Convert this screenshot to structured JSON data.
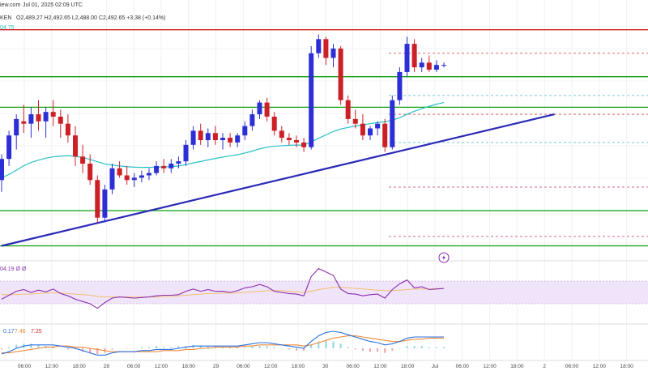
{
  "header": {
    "source_fragment": "iew.com",
    "datetime": "Jul 01, 2025 02:09 UTC",
    "ticker_fragment": "KEN",
    "ohlc_text": "O2,489.27 H2,492.65 L2,488.00 C2,492.65 +3.38 (+0.14%)",
    "ma_value": "04.75"
  },
  "rsi": {
    "values_text": "04.19 Ø Ø"
  },
  "macd": {
    "v1": "0.17",
    "v2": "7.46",
    "v3": "7.25"
  },
  "x_axis": {
    "ticks": [
      "06:00",
      "12:00",
      "18:00",
      "28",
      "06:00",
      "12:00",
      "18:00",
      "29",
      "06:00",
      "12:00",
      "18:00",
      "30",
      "06:00",
      "12:00",
      "18:00",
      "Jul",
      "06:00",
      "12:00",
      "18:00",
      "2",
      "06:00",
      "12:00",
      "18:00"
    ]
  },
  "colors": {
    "up": "#2d2fd6",
    "down": "#cc1f26",
    "ma": "#27c0c8",
    "trendline": "#2a2ab8",
    "support": "#0aa00a",
    "resistance": "#d8232a",
    "rsi_line": "#8b2fb0",
    "rsi_ma": "#f0c070",
    "rsi_band": "#f0e4fa",
    "macd_line": "#2a70e0",
    "signal_line": "#f28a3a",
    "hist_pos": "#8fd6dc",
    "hist_neg": "#f2a0a0"
  },
  "chart_data": {
    "type": "candlestick",
    "price_scale_note": "no price axis labels visible; ohlc in arbitrary units (0-100 scale)",
    "candles": [
      [
        38,
        49,
        33,
        47
      ],
      [
        47,
        59,
        44,
        57
      ],
      [
        57,
        66,
        51,
        64
      ],
      [
        63,
        70,
        58,
        62
      ],
      [
        62,
        69,
        56,
        66
      ],
      [
        66,
        72,
        59,
        63
      ],
      [
        63,
        69,
        56,
        67
      ],
      [
        67,
        72,
        61,
        65
      ],
      [
        65,
        68,
        56,
        62
      ],
      [
        62,
        66,
        54,
        57
      ],
      [
        57,
        61,
        44,
        48
      ],
      [
        48,
        53,
        41,
        45
      ],
      [
        45,
        49,
        36,
        38
      ],
      [
        38,
        40,
        20,
        22
      ],
      [
        22,
        36,
        20,
        34
      ],
      [
        34,
        45,
        32,
        43
      ],
      [
        43,
        46,
        39,
        40
      ],
      [
        40,
        44,
        36,
        38
      ],
      [
        38,
        41,
        35,
        39
      ],
      [
        39,
        42,
        37,
        40
      ],
      [
        40,
        43,
        38,
        41
      ],
      [
        41,
        46,
        40,
        44
      ],
      [
        44,
        47,
        41,
        43
      ],
      [
        43,
        47,
        41,
        45
      ],
      [
        45,
        48,
        43,
        46
      ],
      [
        46,
        55,
        44,
        53
      ],
      [
        53,
        61,
        51,
        59
      ],
      [
        59,
        62,
        53,
        55
      ],
      [
        55,
        60,
        52,
        58
      ],
      [
        58,
        61,
        53,
        55
      ],
      [
        55,
        58,
        51,
        56
      ],
      [
        56,
        58,
        52,
        54
      ],
      [
        54,
        58,
        52,
        57
      ],
      [
        57,
        63,
        55,
        61
      ],
      [
        61,
        68,
        59,
        66
      ],
      [
        66,
        72,
        64,
        71
      ],
      [
        71,
        73,
        63,
        65
      ],
      [
        65,
        67,
        57,
        59
      ],
      [
        59,
        61,
        54,
        56
      ],
      [
        56,
        58,
        53,
        55
      ],
      [
        55,
        57,
        52,
        54
      ],
      [
        54,
        56,
        50,
        52
      ],
      [
        52,
        95,
        51,
        92
      ],
      [
        92,
        100,
        90,
        98
      ],
      [
        98,
        99,
        87,
        90
      ],
      [
        90,
        96,
        86,
        94
      ],
      [
        94,
        95,
        70,
        72
      ],
      [
        72,
        74,
        62,
        64
      ],
      [
        64,
        68,
        60,
        62
      ],
      [
        62,
        66,
        55,
        57
      ],
      [
        57,
        61,
        55,
        60
      ],
      [
        60,
        63,
        57,
        62
      ],
      [
        62,
        64,
        50,
        52
      ],
      [
        52,
        74,
        51,
        72
      ],
      [
        72,
        86,
        70,
        84
      ],
      [
        84,
        99,
        82,
        96
      ],
      [
        96,
        98,
        84,
        86
      ],
      [
        86,
        90,
        84,
        88
      ],
      [
        88,
        91,
        84,
        85
      ],
      [
        85,
        89,
        84,
        87
      ],
      [
        87,
        88,
        86,
        87
      ]
    ],
    "moving_average": [
      39.0,
      40.4,
      42.2,
      44.1,
      45.5,
      46.5,
      47.3,
      47.9,
      48.2,
      48.4,
      48.1,
      47.6,
      46.8,
      45.8,
      44.9,
      44.4,
      44.0,
      43.7,
      43.5,
      43.4,
      43.4,
      43.5,
      43.6,
      43.7,
      44.0,
      44.6,
      45.3,
      45.9,
      46.6,
      47.2,
      47.8,
      48.3,
      48.8,
      49.5,
      50.3,
      51.3,
      52.0,
      52.4,
      52.6,
      52.8,
      52.9,
      52.9,
      54.2,
      55.8,
      57.2,
      58.7,
      59.7,
      60.4,
      61.0,
      61.5,
      62.0,
      62.5,
      62.8,
      63.5,
      64.5,
      66.0,
      67.3,
      68.4,
      69.4,
      70.3,
      71.0
    ],
    "horizontal_levels": [
      {
        "kind": "resistance",
        "level": 102
      },
      {
        "kind": "support",
        "level": 82
      },
      {
        "kind": "support",
        "level": 69
      },
      {
        "kind": "support",
        "level": 25
      },
      {
        "kind": "support",
        "level": 10
      }
    ],
    "dashed_levels": [
      {
        "color": "#e06666",
        "level": 92
      },
      {
        "color": "#79c9cf",
        "level": 74
      },
      {
        "color": "#e06666",
        "level": 66
      },
      {
        "color": "#79c9cf",
        "level": 54
      },
      {
        "color": "#d46a8a",
        "level": 35
      },
      {
        "color": "#d46a8a",
        "level": 14
      }
    ],
    "trendline": {
      "from": [
        0,
        10
      ],
      "to": [
        75,
        66
      ]
    },
    "rsi": {
      "range": [
        0,
        100
      ],
      "band": [
        30,
        70
      ],
      "values": [
        38,
        45,
        52,
        55,
        50,
        54,
        51,
        56,
        48,
        44,
        38,
        34,
        30,
        22,
        32,
        40,
        42,
        41,
        40,
        41,
        42,
        44,
        45,
        45,
        46,
        52,
        56,
        52,
        55,
        52,
        52,
        50,
        53,
        58,
        60,
        64,
        60,
        52,
        50,
        48,
        47,
        44,
        78,
        92,
        86,
        80,
        56,
        48,
        47,
        44,
        46,
        47,
        40,
        55,
        65,
        72,
        58,
        60,
        55,
        56,
        57
      ],
      "ma": [
        46,
        46,
        46,
        47,
        47,
        48,
        49,
        49,
        49,
        48,
        47,
        46,
        45,
        43,
        42,
        42,
        42,
        42,
        42,
        42,
        42,
        42,
        43,
        43,
        44,
        45,
        46,
        47,
        48,
        48,
        49,
        49,
        49,
        50,
        51,
        52,
        53,
        53,
        53,
        52,
        51,
        50,
        52,
        55,
        57,
        59,
        59,
        58,
        57,
        56,
        55,
        54,
        53,
        53,
        54,
        55,
        56,
        56,
        56,
        57,
        57
      ]
    },
    "macd": {
      "macd": [
        -5,
        -3,
        0,
        2,
        3,
        3,
        3,
        3,
        2,
        1,
        0,
        -2,
        -4,
        -6,
        -6,
        -4,
        -3,
        -3,
        -3,
        -2,
        -2,
        -1,
        -1,
        -1,
        0,
        1,
        2,
        2,
        2,
        2,
        2,
        2,
        2,
        3,
        4,
        5,
        5,
        4,
        3,
        2,
        1,
        0,
        6,
        11,
        14,
        15,
        14,
        12,
        10,
        8,
        6,
        5,
        3,
        4,
        6,
        9,
        10,
        10,
        10,
        10,
        10
      ],
      "signal": [
        -4,
        -4,
        -3,
        -2,
        -1,
        0,
        1,
        1,
        2,
        2,
        1,
        1,
        0,
        -1,
        -2,
        -3,
        -3,
        -3,
        -3,
        -3,
        -3,
        -3,
        -2,
        -2,
        -2,
        -1,
        -1,
        0,
        0,
        1,
        1,
        1,
        1,
        2,
        2,
        3,
        3,
        3,
        3,
        3,
        3,
        2,
        3,
        5,
        7,
        9,
        10,
        11,
        11,
        10,
        9,
        8,
        7,
        6,
        6,
        7,
        8,
        8,
        9,
        9,
        9
      ]
    }
  }
}
